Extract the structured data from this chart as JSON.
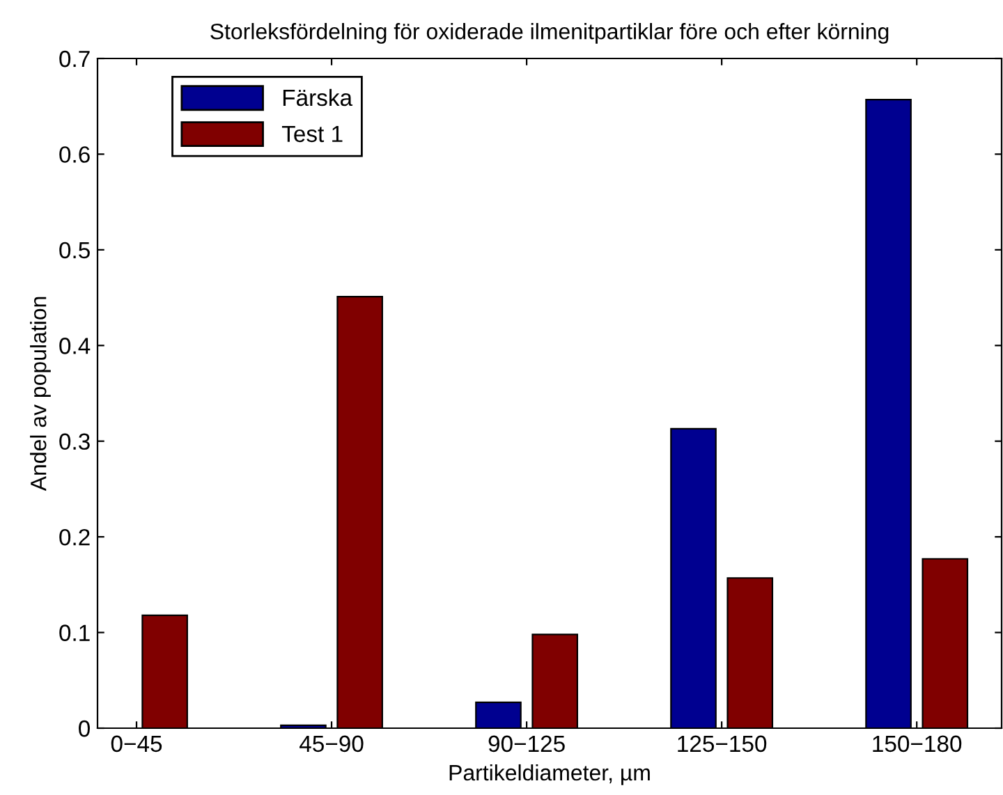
{
  "chart_data": {
    "type": "bar",
    "title": "Storleksfördelning för oxiderade ilmenitpartiklar före och efter körning",
    "xlabel": "Partikeldiameter, µm",
    "ylabel": "Andel av population",
    "categories": [
      "0−45",
      "45−90",
      "90−125",
      "125−150",
      "150−180"
    ],
    "series": [
      {
        "name": "Färska",
        "color": "#000090",
        "values": [
          null,
          0.003,
          0.027,
          0.313,
          0.657
        ]
      },
      {
        "name": "Test 1",
        "color": "#800000",
        "values": [
          0.118,
          0.451,
          0.098,
          0.157,
          0.177
        ]
      }
    ],
    "ylim": [
      0,
      0.7
    ],
    "yticks": [
      0,
      0.1,
      0.2,
      0.3,
      0.4,
      0.5,
      0.6,
      0.7
    ],
    "grid": false,
    "legend": "top left"
  }
}
